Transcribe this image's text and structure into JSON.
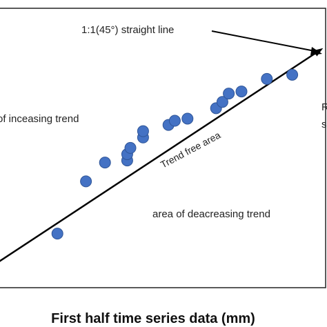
{
  "chart_data": {
    "type": "scatter",
    "xlabel": "First half time series data (mm)",
    "ylabel": "",
    "title": "",
    "grid": false,
    "xlim": [
      0,
      10
    ],
    "ylim": [
      0,
      10
    ],
    "colors": {
      "point": "#4472c4",
      "point_edge": "#2f5597",
      "line": "#000000",
      "frame": "#222222"
    },
    "reference_line": {
      "slope": 1,
      "intercept": 0
    },
    "annotations": {
      "line_label": "1:1(45°) straight line",
      "increasing": "of inceasing trend",
      "trend_free": "Trend free area",
      "decreasing": "area of deacreasing trend",
      "right_cut_1": "R",
      "right_cut_2": "s"
    },
    "points": [
      {
        "x": 1.7,
        "y": 1.2
      },
      {
        "x": 2.6,
        "y": 3.7
      },
      {
        "x": 3.2,
        "y": 4.6
      },
      {
        "x": 3.9,
        "y": 4.7
      },
      {
        "x": 3.9,
        "y": 5.0
      },
      {
        "x": 4.0,
        "y": 5.3
      },
      {
        "x": 4.4,
        "y": 5.8
      },
      {
        "x": 4.4,
        "y": 6.1
      },
      {
        "x": 5.2,
        "y": 6.4
      },
      {
        "x": 5.4,
        "y": 6.6
      },
      {
        "x": 5.8,
        "y": 6.7
      },
      {
        "x": 6.7,
        "y": 7.2
      },
      {
        "x": 6.9,
        "y": 7.5
      },
      {
        "x": 7.1,
        "y": 7.9
      },
      {
        "x": 7.5,
        "y": 8.0
      },
      {
        "x": 8.3,
        "y": 8.6
      },
      {
        "x": 9.1,
        "y": 8.8
      }
    ]
  }
}
